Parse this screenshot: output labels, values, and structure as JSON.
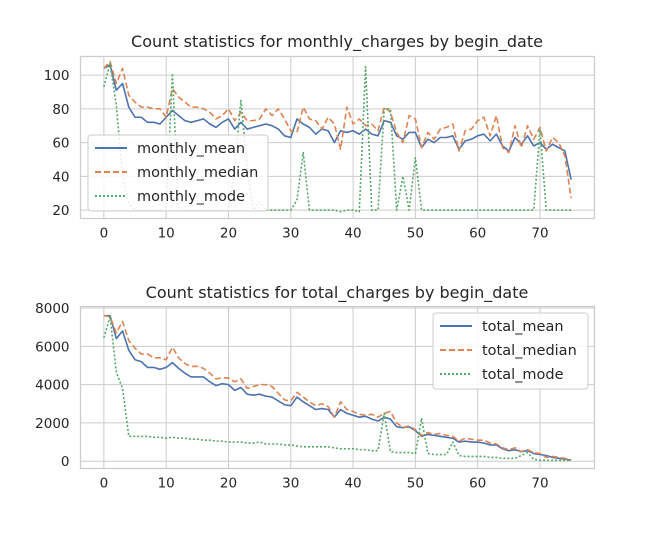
{
  "chart_data": [
    {
      "type": "line",
      "title": "Count statistics for monthly_charges by begin_date",
      "xlabel": "",
      "ylabel": "",
      "xlim": [
        -3.75,
        78.75
      ],
      "ylim": [
        15,
        111
      ],
      "xticks": [
        0,
        10,
        20,
        30,
        40,
        50,
        60,
        70
      ],
      "yticks": [
        20,
        40,
        60,
        80,
        100
      ],
      "grid": true,
      "legend": "center-left",
      "x_range": [
        0,
        75
      ],
      "series": [
        {
          "name": "monthly_mean",
          "color": "#4c72b0",
          "dash": "solid",
          "values": [
            104,
            106,
            91,
            95,
            81,
            75,
            75,
            72,
            72,
            71,
            75,
            79,
            76,
            73,
            72,
            73,
            74,
            71,
            69,
            72,
            74,
            68,
            72,
            68,
            69,
            70,
            71,
            70,
            68,
            64,
            63,
            74,
            71,
            69,
            65,
            68,
            67,
            60,
            67,
            66,
            67,
            65,
            68,
            65,
            64,
            73,
            72,
            64,
            62,
            66,
            66,
            57,
            62,
            60,
            63,
            63,
            64,
            56,
            61,
            62,
            64,
            65,
            61,
            65,
            58,
            55,
            63,
            59,
            64,
            58,
            60,
            56,
            59,
            57,
            55,
            38
          ]
        },
        {
          "name": "monthly_median",
          "color": "#dd8452",
          "dash": "dashed",
          "values": [
            104,
            108,
            95,
            104,
            88,
            84,
            81,
            81,
            80,
            80,
            75,
            92,
            87,
            84,
            81,
            81,
            80,
            78,
            74,
            76,
            80,
            73,
            78,
            73,
            73,
            74,
            80,
            76,
            80,
            74,
            67,
            66,
            81,
            74,
            73,
            68,
            75,
            71,
            56,
            81,
            71,
            74,
            70,
            71,
            67,
            81,
            78,
            66,
            60,
            76,
            74,
            57,
            66,
            62,
            68,
            69,
            71,
            55,
            67,
            68,
            73,
            75,
            64,
            76,
            57,
            54,
            70,
            57,
            70,
            62,
            69,
            55,
            63,
            60,
            52,
            27
          ]
        },
        {
          "name": "monthly_mode",
          "color": "#55a868",
          "dash": "dotted",
          "values": [
            93,
            107,
            82,
            40,
            24,
            20,
            20,
            20,
            20,
            20,
            20,
            101,
            20,
            20,
            20,
            20,
            20,
            20,
            20,
            20,
            20,
            45,
            85,
            45,
            20,
            25,
            20,
            20,
            20,
            20,
            20,
            26,
            54,
            20,
            20,
            20,
            20,
            20,
            19,
            20,
            20,
            19,
            105,
            20,
            20,
            80,
            80,
            20,
            40,
            20,
            51,
            20,
            20,
            20,
            20,
            20,
            20,
            20,
            20,
            20,
            20,
            20,
            20,
            20,
            20,
            20,
            20,
            20,
            20,
            20,
            68,
            20,
            20,
            20,
            20,
            20
          ]
        }
      ]
    },
    {
      "type": "line",
      "title": "Count statistics for total_charges by begin_date",
      "xlabel": "",
      "ylabel": "",
      "xlim": [
        -3.75,
        78.75
      ],
      "ylim": [
        -380,
        8080
      ],
      "xticks": [
        0,
        10,
        20,
        30,
        40,
        50,
        60,
        70
      ],
      "yticks": [
        0,
        2000,
        4000,
        6000,
        8000
      ],
      "grid": true,
      "legend": "top-right",
      "x_range": [
        0,
        75
      ],
      "series": [
        {
          "name": "total_mean",
          "color": "#4c72b0",
          "dash": "solid",
          "values": [
            7600,
            7600,
            6400,
            6800,
            5800,
            5300,
            5200,
            4900,
            4900,
            4800,
            4900,
            5150,
            4850,
            4600,
            4400,
            4400,
            4400,
            4150,
            3950,
            4050,
            4000,
            3700,
            3850,
            3500,
            3450,
            3500,
            3400,
            3350,
            3150,
            2950,
            2900,
            3350,
            3100,
            2900,
            2700,
            2750,
            2700,
            2300,
            2700,
            2500,
            2400,
            2300,
            2350,
            2200,
            2100,
            2300,
            2200,
            1800,
            1750,
            1800,
            1600,
            1300,
            1400,
            1350,
            1300,
            1250,
            1200,
            1000,
            1050,
            1000,
            1000,
            950,
            850,
            850,
            650,
            550,
            600,
            500,
            550,
            400,
            350,
            300,
            200,
            150,
            120,
            50
          ]
        },
        {
          "name": "total_median",
          "color": "#dd8452",
          "dash": "dashed",
          "values": [
            7600,
            7550,
            6700,
            7300,
            6300,
            5900,
            5600,
            5600,
            5400,
            5400,
            5300,
            5950,
            5400,
            5100,
            4950,
            4950,
            4850,
            4600,
            4300,
            4350,
            4350,
            4150,
            4300,
            3800,
            3900,
            4000,
            4000,
            3900,
            3550,
            3200,
            3150,
            3600,
            3350,
            3100,
            2900,
            3000,
            2850,
            2300,
            3100,
            2700,
            2600,
            2450,
            2400,
            2450,
            2300,
            2500,
            2600,
            2000,
            1750,
            1850,
            1650,
            1350,
            1500,
            1400,
            1450,
            1350,
            1300,
            1050,
            1200,
            1150,
            1100,
            1100,
            950,
            900,
            700,
            600,
            700,
            500,
            600,
            450,
            400,
            200,
            250,
            200,
            150,
            60
          ]
        },
        {
          "name": "total_mode",
          "color": "#55a868",
          "dash": "dotted",
          "values": [
            6450,
            7550,
            4650,
            3800,
            1300,
            1300,
            1300,
            1300,
            1250,
            1250,
            1200,
            1250,
            1200,
            1200,
            1150,
            1150,
            1100,
            1100,
            1050,
            1050,
            1000,
            1000,
            1000,
            950,
            950,
            1000,
            900,
            900,
            900,
            850,
            850,
            800,
            750,
            750,
            750,
            750,
            750,
            700,
            650,
            650,
            650,
            600,
            600,
            550,
            550,
            2500,
            500,
            450,
            450,
            450,
            400,
            2250,
            400,
            350,
            350,
            350,
            1000,
            300,
            250,
            250,
            250,
            250,
            200,
            200,
            150,
            150,
            150,
            300,
            450,
            100,
            50,
            50,
            50,
            50,
            50,
            50
          ]
        }
      ]
    }
  ]
}
